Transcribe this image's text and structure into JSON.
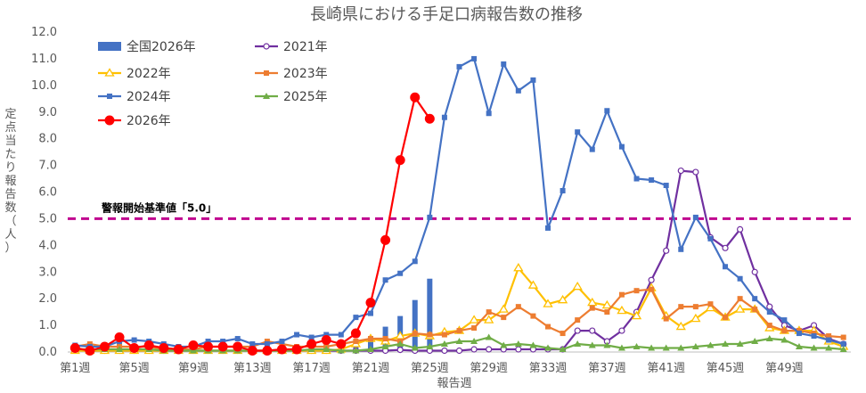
{
  "chart_data": {
    "type": "line",
    "title": "長崎県における手足口病報告数の推移",
    "xlabel": "報告週",
    "ylabel": "定点当たり報告数（人）",
    "ylim": [
      0,
      12
    ],
    "y_ticks": [
      "0.0",
      "1.0",
      "2.0",
      "3.0",
      "4.0",
      "5.0",
      "6.0",
      "7.0",
      "8.0",
      "9.0",
      "10.0",
      "11.0",
      "12.0"
    ],
    "x_ticks": [
      "第1週",
      "第5週",
      "第9週",
      "第13週",
      "第17週",
      "第21週",
      "第25週",
      "第29週",
      "第33週",
      "第37週",
      "第41週",
      "第45週",
      "第49週"
    ],
    "x_tick_weeks": [
      1,
      5,
      9,
      13,
      17,
      21,
      25,
      29,
      33,
      37,
      41,
      45,
      49
    ],
    "weeks": 53,
    "threshold": {
      "value": 5.0,
      "label": "警報開始基準値「5.0」",
      "color": "#c0008f"
    },
    "bar_series": {
      "name": "全国2026年",
      "color": "#4472c4",
      "values": [
        0.2,
        0.2,
        0.25,
        0.3,
        0.22,
        0.18,
        0.15,
        0.12,
        0.12,
        0.13,
        0.15,
        0.15,
        0.15,
        0.15,
        0.16,
        0.15,
        0.2,
        0.28,
        0.35,
        0.45,
        0.6,
        0.95,
        1.35,
        1.95,
        2.75
      ]
    },
    "series": [
      {
        "name": "2021年",
        "color": "#7030a0",
        "marker": "circle-open",
        "values": [
          0.1,
          0.05,
          0.05,
          0.05,
          0.05,
          0.05,
          0.05,
          0.05,
          0.05,
          0.05,
          0.05,
          0.05,
          0.05,
          0.05,
          0.05,
          0.05,
          0.05,
          0.05,
          0.05,
          0.05,
          0.05,
          0.05,
          0.08,
          0.05,
          0.05,
          0.05,
          0.05,
          0.1,
          0.1,
          0.1,
          0.1,
          0.1,
          0.1,
          0.1,
          0.8,
          0.8,
          0.4,
          0.8,
          1.5,
          2.7,
          3.8,
          6.8,
          6.75,
          4.3,
          3.9,
          4.6,
          3.0,
          1.7,
          1.0,
          0.8,
          1.0,
          0.5,
          0.3
        ]
      },
      {
        "name": "2022年",
        "color": "#ffc000",
        "marker": "triangle-open",
        "values": [
          0.05,
          0.05,
          0.05,
          0.05,
          0.05,
          0.05,
          0.05,
          0.05,
          0.05,
          0.05,
          0.05,
          0.05,
          0.05,
          0.05,
          0.05,
          0.05,
          0.05,
          0.05,
          0.1,
          0.3,
          0.5,
          0.4,
          0.6,
          0.7,
          0.6,
          0.75,
          0.8,
          1.2,
          1.2,
          1.6,
          3.15,
          2.5,
          1.8,
          1.95,
          2.45,
          1.85,
          1.75,
          1.55,
          1.35,
          2.4,
          1.35,
          0.95,
          1.25,
          1.65,
          1.3,
          1.6,
          1.6,
          0.9,
          0.8,
          0.8,
          0.8,
          0.4,
          0.2
        ]
      },
      {
        "name": "2023年",
        "color": "#ed7d31",
        "marker": "square",
        "values": [
          0.2,
          0.3,
          0.2,
          0.2,
          0.2,
          0.2,
          0.1,
          0.1,
          0.1,
          0.2,
          0.2,
          0.2,
          0.2,
          0.4,
          0.3,
          0.2,
          0.2,
          0.2,
          0.3,
          0.4,
          0.5,
          0.5,
          0.4,
          0.7,
          0.65,
          0.65,
          0.8,
          0.9,
          1.5,
          1.3,
          1.7,
          1.35,
          0.95,
          0.7,
          1.2,
          1.65,
          1.5,
          2.15,
          2.3,
          2.35,
          1.25,
          1.7,
          1.7,
          1.8,
          1.3,
          2.0,
          1.6,
          1.0,
          0.8,
          0.8,
          0.7,
          0.6,
          0.55
        ]
      },
      {
        "name": "2024年",
        "color": "#4472c4",
        "marker": "square",
        "values": [
          0.25,
          0.2,
          0.2,
          0.4,
          0.45,
          0.4,
          0.3,
          0.2,
          0.2,
          0.4,
          0.4,
          0.5,
          0.3,
          0.3,
          0.4,
          0.65,
          0.55,
          0.65,
          0.65,
          1.3,
          1.45,
          2.7,
          2.95,
          3.4,
          5.05,
          8.8,
          10.7,
          11.0,
          8.95,
          10.8,
          9.8,
          10.2,
          4.65,
          6.05,
          8.25,
          7.6,
          9.05,
          7.7,
          6.5,
          6.45,
          6.25,
          3.85,
          5.05,
          4.25,
          3.2,
          2.75,
          2.0,
          1.5,
          1.2,
          0.7,
          0.6,
          0.45,
          0.3
        ]
      },
      {
        "name": "2025年",
        "color": "#70ad47",
        "marker": "triangle",
        "values": [
          0.1,
          0.1,
          0.1,
          0.1,
          0.1,
          0.1,
          0.05,
          0.05,
          0.05,
          0.05,
          0.05,
          0.05,
          0.05,
          0.05,
          0.05,
          0.05,
          0.1,
          0.1,
          0.05,
          0.05,
          0.1,
          0.2,
          0.3,
          0.15,
          0.2,
          0.3,
          0.4,
          0.4,
          0.55,
          0.25,
          0.3,
          0.25,
          0.15,
          0.1,
          0.3,
          0.25,
          0.25,
          0.15,
          0.2,
          0.15,
          0.15,
          0.15,
          0.2,
          0.25,
          0.3,
          0.3,
          0.4,
          0.5,
          0.45,
          0.2,
          0.15,
          0.15,
          0.1
        ]
      },
      {
        "name": "2026年",
        "color": "#ff0000",
        "marker": "circle",
        "values": [
          0.15,
          0.05,
          0.2,
          0.55,
          0.15,
          0.25,
          0.15,
          0.1,
          0.25,
          0.2,
          0.2,
          0.2,
          0.05,
          0.05,
          0.1,
          0.1,
          0.3,
          0.45,
          0.3,
          0.7,
          1.85,
          4.2,
          7.2,
          9.55,
          8.75
        ]
      }
    ],
    "legend_order": [
      "全国2026年",
      "2021年",
      "2022年",
      "2023年",
      "2024年",
      "2025年",
      "2026年"
    ],
    "grid": false,
    "legend_position": "top-left"
  }
}
